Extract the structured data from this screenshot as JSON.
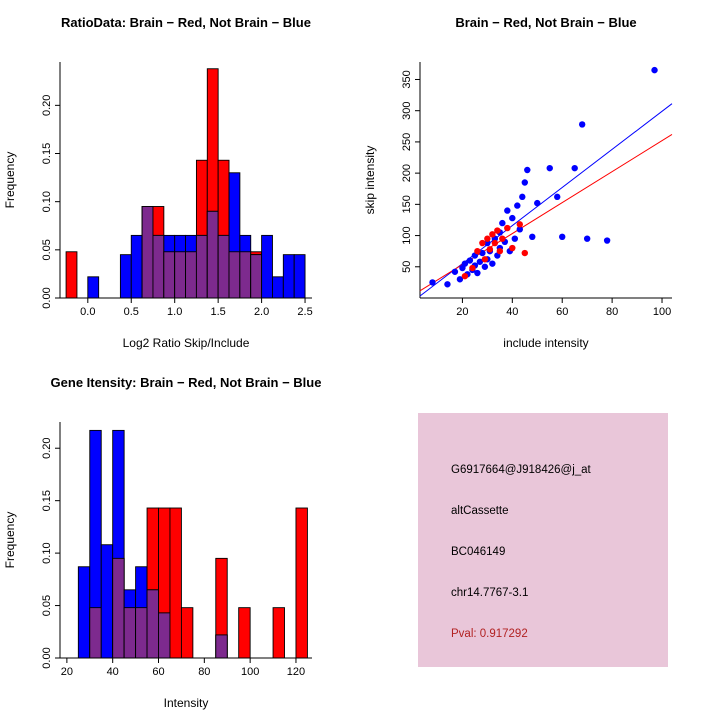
{
  "chart_data": [
    {
      "type": "bar",
      "subtype": "overlaid-histogram",
      "title": "RatioData: Brain − Red, Not Brain − Blue",
      "xlabel": "Log2 Ratio Skip/Include",
      "ylabel": "Frequency",
      "grid": false,
      "bin_start": -0.25,
      "bin_width": 0.125,
      "xlim": [
        -0.32,
        2.58
      ],
      "ylim": [
        0,
        0.245
      ],
      "xtick_values": [
        0,
        0.5,
        1,
        1.5,
        2,
        2.5
      ],
      "xtick_labels": [
        "0.0",
        "0.5",
        "1.0",
        "1.5",
        "2.0",
        "2.5"
      ],
      "ytick_values": [
        0,
        0.05,
        0.1,
        0.15,
        0.2
      ],
      "ytick_labels": [
        "0.00",
        "0.05",
        "0.10",
        "0.15",
        "0.20"
      ],
      "overlap_color": "#7D2A8E",
      "series": [
        {
          "name": "Brain",
          "color": "#FF0000",
          "values": [
            0.048,
            0,
            0,
            0,
            0,
            0,
            0,
            0.095,
            0.095,
            0.048,
            0.048,
            0.048,
            0.143,
            0.238,
            0.143,
            0.048,
            0.048,
            0.048,
            0,
            0,
            0,
            0
          ]
        },
        {
          "name": "Not Brain",
          "color": "#0000FF",
          "values": [
            0,
            0,
            0.022,
            0,
            0,
            0.045,
            0.065,
            0.095,
            0.065,
            0.065,
            0.065,
            0.065,
            0.065,
            0.09,
            0.065,
            0.13,
            0.065,
            0.045,
            0.065,
            0.022,
            0.045,
            0.045
          ]
        }
      ]
    },
    {
      "type": "scatter",
      "title": "Brain − Red, Not Brain − Blue",
      "xlabel": "include intensity",
      "ylabel": "skip intensity",
      "grid": false,
      "xlim": [
        3,
        104
      ],
      "ylim": [
        0,
        378
      ],
      "xtick_values": [
        20,
        40,
        60,
        80,
        100
      ],
      "xtick_labels": [
        "20",
        "40",
        "60",
        "80",
        "100"
      ],
      "ytick_values": [
        50,
        100,
        150,
        200,
        250,
        300,
        350
      ],
      "ytick_labels": [
        "50",
        "100",
        "150",
        "200",
        "250",
        "300",
        "350"
      ],
      "series": [
        {
          "name": "Not Brain",
          "color": "#0000FF",
          "points": [
            [
              8,
              25
            ],
            [
              14,
              22
            ],
            [
              17,
              42
            ],
            [
              19,
              30
            ],
            [
              20,
              48
            ],
            [
              21,
              55
            ],
            [
              22,
              38
            ],
            [
              23,
              60
            ],
            [
              24,
              45
            ],
            [
              25,
              52
            ],
            [
              25,
              68
            ],
            [
              26,
              40
            ],
            [
              27,
              58
            ],
            [
              28,
              72
            ],
            [
              29,
              50
            ],
            [
              30,
              62
            ],
            [
              30,
              88
            ],
            [
              31,
              75
            ],
            [
              32,
              55
            ],
            [
              33,
              95
            ],
            [
              34,
              68
            ],
            [
              35,
              105
            ],
            [
              35,
              80
            ],
            [
              36,
              120
            ],
            [
              37,
              90
            ],
            [
              38,
              140
            ],
            [
              39,
              75
            ],
            [
              40,
              128
            ],
            [
              41,
              95
            ],
            [
              42,
              148
            ],
            [
              43,
              110
            ],
            [
              44,
              162
            ],
            [
              45,
              185
            ],
            [
              46,
              205
            ],
            [
              48,
              98
            ],
            [
              50,
              152
            ],
            [
              55,
              208
            ],
            [
              58,
              162
            ],
            [
              60,
              98
            ],
            [
              65,
              208
            ],
            [
              68,
              278
            ],
            [
              70,
              95
            ],
            [
              78,
              92
            ],
            [
              97,
              365
            ]
          ],
          "line": {
            "slope": 3.05,
            "intercept": -6
          }
        },
        {
          "name": "Brain",
          "color": "#FF0000",
          "points": [
            [
              21,
              35
            ],
            [
              24,
              48
            ],
            [
              26,
              75
            ],
            [
              28,
              88
            ],
            [
              29,
              62
            ],
            [
              30,
              95
            ],
            [
              31,
              78
            ],
            [
              32,
              102
            ],
            [
              33,
              88
            ],
            [
              34,
              108
            ],
            [
              35,
              75
            ],
            [
              36,
              95
            ],
            [
              38,
              112
            ],
            [
              40,
              80
            ],
            [
              43,
              118
            ],
            [
              45,
              72
            ]
          ],
          "line": {
            "slope": 2.48,
            "intercept": 4
          }
        }
      ]
    },
    {
      "type": "bar",
      "subtype": "overlaid-histogram",
      "title": "Gene Itensity: Brain − Red, Not Brain − Blue",
      "xlabel": "Intensity",
      "ylabel": "Frequency",
      "grid": false,
      "bin_start": 20,
      "bin_width": 5,
      "xlim": [
        17,
        127
      ],
      "ylim": [
        0,
        0.225
      ],
      "xtick_values": [
        20,
        40,
        60,
        80,
        100,
        120
      ],
      "xtick_labels": [
        "20",
        "40",
        "60",
        "80",
        "100",
        "120"
      ],
      "ytick_values": [
        0,
        0.05,
        0.1,
        0.15,
        0.2
      ],
      "ytick_labels": [
        "0.00",
        "0.05",
        "0.10",
        "0.15",
        "0.20"
      ],
      "overlap_color": "#7D2A8E",
      "series": [
        {
          "name": "Brain",
          "color": "#FF0000",
          "values": [
            0,
            0,
            0.048,
            0,
            0.095,
            0.048,
            0.048,
            0.143,
            0.143,
            0.143,
            0.048,
            0,
            0,
            0.095,
            0,
            0.048,
            0,
            0,
            0.048,
            0,
            0.143
          ]
        },
        {
          "name": "Not Brain",
          "color": "#0000FF",
          "values": [
            0,
            0.087,
            0.217,
            0.108,
            0.217,
            0.065,
            0.087,
            0.065,
            0.043,
            0,
            0,
            0,
            0,
            0.022,
            0,
            0,
            0,
            0,
            0,
            0,
            0
          ]
        }
      ]
    }
  ],
  "info_panel": {
    "lines": [
      "G6917664@J918426@j_at",
      "altCassette",
      "BC046149",
      "chr14.7767-3.1",
      "Pval: 0.917292"
    ],
    "bg_color": "#E9C6D9",
    "pval_color": "#B22222"
  }
}
